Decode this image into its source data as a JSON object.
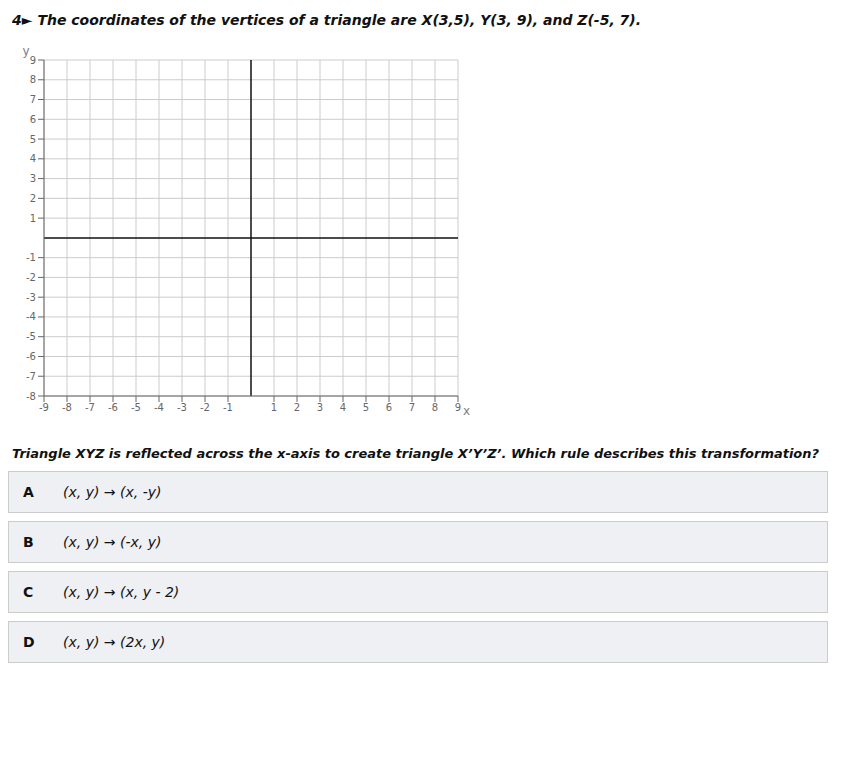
{
  "chart_data": {
    "type": "scatter",
    "title": "4► The coordinates of the vertices of a triangle are X(3,5), Y(3, 9), and Z(-5, 7).",
    "xlabel": "x",
    "ylabel": "y",
    "xlim": [
      -9,
      9
    ],
    "ylim": [
      -8,
      9
    ],
    "xticks": [
      -9,
      -8,
      -7,
      -6,
      -5,
      -4,
      -3,
      -2,
      -1,
      1,
      2,
      3,
      4,
      5,
      6,
      7,
      8,
      9
    ],
    "yticks": [
      -8,
      -7,
      -6,
      -5,
      -4,
      -3,
      -2,
      -1,
      1,
      2,
      3,
      4,
      5,
      6,
      7,
      8,
      9
    ],
    "grid": true,
    "annotations": [
      {
        "text": "Triangle XYZ is reflected across the x-axis to create triangle X’Y’Z’. Which rule describes this transformation?"
      },
      {
        "label": "A",
        "text": "(x, y) → (x, -y)"
      },
      {
        "label": "B",
        "text": "(x, y) → (-x, y)"
      },
      {
        "label": "C",
        "text": "(x, y) → (x, y - 2)"
      },
      {
        "label": "D",
        "text": "(x, y) → (2x, y)"
      }
    ]
  }
}
